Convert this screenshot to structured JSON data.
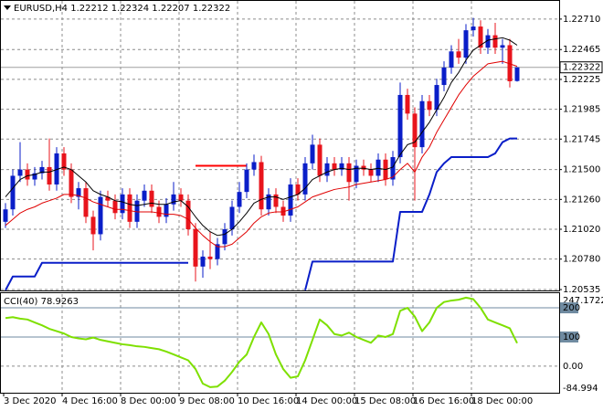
{
  "chart_data": [
    {
      "type": "candlestick",
      "title": "EURUSD,H4",
      "candles": {
        "open": [
          1.2108,
          1.2118,
          1.2145,
          1.215,
          1.2142,
          1.2147,
          1.2152,
          1.2138,
          1.2163,
          1.215,
          1.2128,
          1.2135,
          1.2112,
          1.2098,
          1.2128,
          1.2125,
          1.2115,
          1.213,
          1.2108,
          1.2125,
          1.2133,
          1.212,
          1.2112,
          1.2122,
          1.213,
          1.2125,
          1.2102,
          1.2072,
          1.208,
          1.2078,
          1.209,
          1.2102,
          1.212,
          1.2132,
          1.215,
          1.2156,
          1.2118,
          1.213,
          1.212,
          1.2113,
          1.2138,
          1.213,
          1.2155,
          1.217,
          1.2145,
          1.2155,
          1.215,
          1.2155,
          1.214,
          1.2153,
          1.215,
          1.2145,
          1.2158,
          1.2142,
          1.216,
          1.221,
          1.2195,
          1.2168,
          1.2205,
          1.2198,
          1.2218,
          1.2232,
          1.2245,
          1.224,
          1.2262,
          1.2265,
          1.2248,
          1.2258,
          1.2248,
          1.225,
          1.22212
        ],
        "high": [
          1.2123,
          1.215,
          1.2172,
          1.2155,
          1.2152,
          1.2157,
          1.2175,
          1.2168,
          1.2168,
          1.2155,
          1.214,
          1.214,
          1.2117,
          1.2133,
          1.2133,
          1.213,
          1.2135,
          1.2135,
          1.213,
          1.2138,
          1.2138,
          1.2125,
          1.2127,
          1.214,
          1.2135,
          1.213,
          1.2107,
          1.2085,
          1.21,
          1.2095,
          1.2107,
          1.2125,
          1.214,
          1.2155,
          1.2162,
          1.2161,
          1.2135,
          1.2135,
          1.2125,
          1.2143,
          1.2143,
          1.216,
          1.2178,
          1.2175,
          1.216,
          1.216,
          1.216,
          1.216,
          1.2158,
          1.2158,
          1.2155,
          1.2163,
          1.2163,
          1.2165,
          1.222,
          1.2215,
          1.22,
          1.221,
          1.221,
          1.2223,
          1.2237,
          1.225,
          1.2255,
          1.2267,
          1.2272,
          1.227,
          1.2263,
          1.2268,
          1.2255,
          1.2255,
          1.22324
        ],
        "low": [
          1.2103,
          1.2113,
          1.214,
          1.2137,
          1.2137,
          1.2142,
          1.2133,
          1.2133,
          1.2145,
          1.2123,
          1.2118,
          1.2107,
          1.2085,
          1.2093,
          1.212,
          1.211,
          1.211,
          1.2103,
          1.2103,
          1.212,
          1.2115,
          1.2107,
          1.2107,
          1.2117,
          1.212,
          1.2097,
          1.206,
          1.2063,
          1.207,
          1.2073,
          1.2085,
          1.2097,
          1.2115,
          1.2127,
          1.2145,
          1.2113,
          1.2113,
          1.2115,
          1.2108,
          1.2108,
          1.2125,
          1.2125,
          1.215,
          1.214,
          1.214,
          1.2145,
          1.2145,
          1.2125,
          1.2135,
          1.2145,
          1.214,
          1.214,
          1.2137,
          1.2137,
          1.2155,
          1.219,
          1.2125,
          1.2163,
          1.2193,
          1.2193,
          1.2213,
          1.2227,
          1.2235,
          1.2235,
          1.2257,
          1.2243,
          1.2243,
          1.2243,
          1.2235,
          1.2216,
          1.22207
        ],
        "close": [
          1.2118,
          1.2145,
          1.215,
          1.2142,
          1.2147,
          1.2152,
          1.2138,
          1.2163,
          1.215,
          1.2128,
          1.2135,
          1.2112,
          1.2098,
          1.2128,
          1.2125,
          1.2115,
          1.213,
          1.2108,
          1.2125,
          1.2133,
          1.212,
          1.2112,
          1.2122,
          1.213,
          1.2125,
          1.2102,
          1.2072,
          1.208,
          1.2078,
          1.209,
          1.2102,
          1.212,
          1.2132,
          1.215,
          1.2156,
          1.2118,
          1.213,
          1.212,
          1.2113,
          1.2138,
          1.213,
          1.2155,
          1.217,
          1.2145,
          1.2155,
          1.215,
          1.2155,
          1.214,
          1.2153,
          1.215,
          1.2145,
          1.2158,
          1.2142,
          1.216,
          1.221,
          1.2195,
          1.2168,
          1.2205,
          1.2198,
          1.2218,
          1.2232,
          1.2245,
          1.224,
          1.2262,
          1.2265,
          1.2248,
          1.2258,
          1.2248,
          1.225,
          1.2221,
          1.22322
        ]
      },
      "up_color": "#0a1ec8",
      "down_color": "#e8141c",
      "series": [
        {
          "color": "#000000",
          "width": 1,
          "values": [
            1.2128,
            1.2135,
            1.2142,
            1.2145,
            1.2146,
            1.2148,
            1.2148,
            1.215,
            1.2152,
            1.215,
            1.2145,
            1.214,
            1.2133,
            1.213,
            1.2128,
            1.2125,
            1.2124,
            1.2122,
            1.2121,
            1.2122,
            1.2123,
            1.2122,
            1.2122,
            1.2124,
            1.2125,
            1.212,
            1.2112,
            1.2105,
            1.21,
            1.2097,
            1.2098,
            1.2102,
            1.2108,
            1.2115,
            1.2123,
            1.2126,
            1.2128,
            1.2128,
            1.2126,
            1.2128,
            1.213,
            1.2135,
            1.2142,
            1.2145,
            1.2148,
            1.215,
            1.2151,
            1.215,
            1.2151,
            1.2151,
            1.215,
            1.2151,
            1.215,
            1.2152,
            1.2162,
            1.217,
            1.2172,
            1.218,
            1.2188,
            1.2198,
            1.2208,
            1.222,
            1.2228,
            1.2238,
            1.2246,
            1.225,
            1.2254,
            1.2255,
            1.2256,
            1.2254,
            1.225
          ]
        },
        {
          "color": "#e00000",
          "width": 1,
          "values": [
            1.2105,
            1.211,
            1.2115,
            1.2118,
            1.212,
            1.2123,
            1.2125,
            1.2127,
            1.213,
            1.213,
            1.2129,
            1.2127,
            1.2124,
            1.2122,
            1.212,
            1.2118,
            1.2118,
            1.2117,
            1.2116,
            1.2116,
            1.2116,
            1.2115,
            1.2114,
            1.2114,
            1.2113,
            1.211,
            1.2103,
            1.2097,
            1.2092,
            1.2088,
            1.2088,
            1.209,
            1.2095,
            1.21,
            1.2107,
            1.2112,
            1.2115,
            1.2116,
            1.2116,
            1.2118,
            1.212,
            1.2124,
            1.2128,
            1.213,
            1.2132,
            1.2134,
            1.2135,
            1.2136,
            1.2138,
            1.2139,
            1.214,
            1.2141,
            1.2142,
            1.2144,
            1.215,
            1.2155,
            1.2148,
            1.216,
            1.2168,
            1.218,
            1.219,
            1.22,
            1.221,
            1.2218,
            1.2225,
            1.223,
            1.2235,
            1.2236,
            1.2237,
            1.2235,
            1.2233
          ]
        },
        {
          "color": "#0a1ec8",
          "width": 2,
          "values": [
            1.2053,
            1.2064,
            1.2064,
            1.2064,
            1.2064,
            1.2075,
            1.2075,
            1.2075,
            1.2075,
            1.2075,
            1.2075,
            1.2075,
            1.2075,
            1.2075,
            1.2075,
            1.2075,
            1.2075,
            1.2075,
            1.2075,
            1.2075,
            1.2075,
            1.2075,
            1.2075,
            1.2075,
            1.2075,
            1.2075,
            null,
            null,
            null,
            null,
            null,
            null,
            null,
            null,
            null,
            null,
            null,
            null,
            null,
            null,
            null,
            1.2053,
            1.2076,
            1.2076,
            1.2076,
            1.2076,
            1.2076,
            1.2076,
            1.2076,
            1.2076,
            1.2076,
            1.2076,
            1.2076,
            1.2076,
            1.2116,
            1.2116,
            1.2116,
            1.2116,
            1.213,
            1.2148,
            1.2155,
            1.216,
            1.216,
            1.216,
            1.216,
            1.216,
            1.216,
            1.2163,
            1.2172,
            1.2175,
            1.2175
          ]
        }
      ],
      "level_line": {
        "value": 1.2153,
        "start": 26,
        "end": 33,
        "color": "#ff0000"
      },
      "ylim": [
        1.20528,
        1.22856
      ],
      "yticks": [
        {
          "value": 1.2271,
          "label": "1.22710"
        },
        1.22465,
        1.22225,
        1.21985,
        1.21745,
        {
          "value": 1.215,
          "label": "1.21500"
        },
        {
          "value": 1.2126,
          "label": "1.21260"
        },
        {
          "value": 1.2102,
          "label": "1.21020"
        },
        {
          "value": 1.2078,
          "label": "1.20780"
        },
        1.20535
      ],
      "xticks": [
        {
          "value": 0,
          "label": "3 Dec 2020"
        },
        {
          "value": 8,
          "label": "4 Dec 16:00"
        },
        {
          "value": 16,
          "label": "8 Dec 00:00"
        },
        {
          "value": 24,
          "label": "9 Dec 08:00"
        },
        {
          "value": 32,
          "label": "10 Dec 16:00"
        },
        {
          "value": 40,
          "label": "14 Dec 00:00"
        },
        {
          "value": 48,
          "label": "15 Dec 08:00"
        },
        {
          "value": 56,
          "label": "16 Dec 16:00"
        },
        {
          "value": 64,
          "label": "18 Dec 00:00"
        }
      ],
      "grid": true
    },
    {
      "type": "line",
      "title": "CCI(40)",
      "series": [
        {
          "color": "#7ee000",
          "width": 2,
          "values": [
            165,
            168,
            163,
            160,
            150,
            140,
            128,
            120,
            112,
            100,
            95,
            92,
            98,
            90,
            85,
            80,
            75,
            72,
            68,
            66,
            62,
            58,
            50,
            40,
            30,
            20,
            -10,
            -60,
            -72,
            -70,
            -50,
            -20,
            15,
            40,
            100,
            150,
            110,
            40,
            -10,
            -40,
            -35,
            20,
            90,
            160,
            140,
            110,
            105,
            115,
            100,
            90,
            80,
            105,
            100,
            110,
            190,
            200,
            170,
            120,
            150,
            200,
            220,
            225,
            228,
            235,
            230,
            200,
            160,
            150,
            140,
            130,
            78.9263
          ]
        }
      ],
      "levels": [
        200,
        100
      ],
      "level_color": "#6f8aa0",
      "ylim": [
        -84.994,
        247.1722
      ],
      "yticks": [
        247.1722,
        200,
        100,
        {
          "value": 0,
          "label": "0.00"
        },
        -84.994
      ],
      "grid": true
    }
  ]
}
